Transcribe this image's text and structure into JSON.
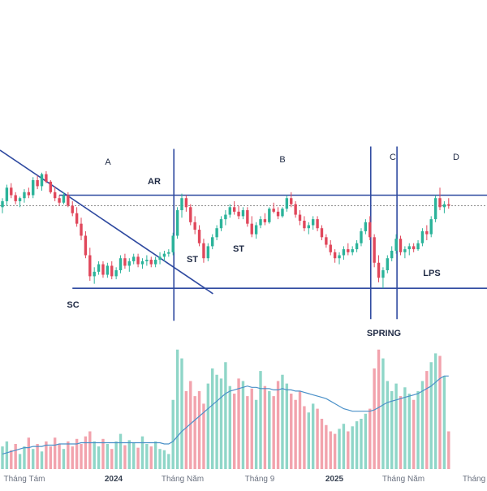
{
  "chart_data": {
    "type": "candlestick",
    "title": "",
    "colors": {
      "up": "#2bb39a",
      "down": "#e0475b",
      "volume_up": "#8fd6c8",
      "volume_down": "#f2a3ad",
      "wyckoff_lines": "#2f4aa0",
      "volume_ma": "#4a90c8",
      "current_price_line": "#8a8a8a"
    },
    "x_axis_labels": [
      "Tháng Tám",
      "2024",
      "Tháng Năm",
      "Tháng 9",
      "2025",
      "Tháng Năm",
      "Tháng"
    ],
    "phases": [
      "A",
      "B",
      "C",
      "D"
    ],
    "events": [
      "SC",
      "AR",
      "ST",
      "ST",
      "SPRING",
      "LPS"
    ],
    "ohlc": [
      [
        262,
        268,
        258,
        266
      ],
      [
        266,
        277,
        263,
        275
      ],
      [
        275,
        278,
        268,
        270
      ],
      [
        270,
        272,
        264,
        266
      ],
      [
        266,
        269,
        262,
        268
      ],
      [
        268,
        274,
        265,
        272
      ],
      [
        272,
        275,
        268,
        270
      ],
      [
        270,
        282,
        268,
        280
      ],
      [
        280,
        283,
        274,
        276
      ],
      [
        276,
        285,
        273,
        284
      ],
      [
        284,
        286,
        278,
        279
      ],
      [
        279,
        280,
        271,
        272
      ],
      [
        272,
        276,
        266,
        268
      ],
      [
        268,
        270,
        263,
        265
      ],
      [
        265,
        272,
        264,
        270
      ],
      [
        270,
        272,
        262,
        263
      ],
      [
        263,
        266,
        256,
        258
      ],
      [
        258,
        262,
        249,
        251
      ],
      [
        251,
        255,
        240,
        243
      ],
      [
        243,
        246,
        228,
        230
      ],
      [
        230,
        235,
        213,
        216
      ],
      [
        216,
        222,
        211,
        219
      ],
      [
        219,
        226,
        217,
        224
      ],
      [
        224,
        226,
        215,
        217
      ],
      [
        217,
        225,
        215,
        223
      ],
      [
        223,
        226,
        214,
        216
      ],
      [
        216,
        222,
        214,
        220
      ],
      [
        220,
        230,
        218,
        228
      ],
      [
        228,
        231,
        221,
        223
      ],
      [
        223,
        228,
        219,
        226
      ],
      [
        226,
        231,
        224,
        229
      ],
      [
        229,
        231,
        222,
        224
      ],
      [
        224,
        228,
        221,
        226
      ],
      [
        226,
        230,
        223,
        227
      ],
      [
        227,
        229,
        222,
        224
      ],
      [
        224,
        229,
        222,
        227
      ],
      [
        227,
        232,
        224,
        229
      ],
      [
        229,
        233,
        226,
        231
      ],
      [
        231,
        234,
        229,
        232
      ],
      [
        232,
        245,
        230,
        243
      ],
      [
        243,
        262,
        241,
        260
      ],
      [
        260,
        271,
        255,
        268
      ],
      [
        268,
        270,
        259,
        262
      ],
      [
        262,
        264,
        250,
        252
      ],
      [
        252,
        256,
        244,
        247
      ],
      [
        247,
        250,
        236,
        238
      ],
      [
        238,
        241,
        225,
        228
      ],
      [
        228,
        238,
        226,
        236
      ],
      [
        236,
        244,
        234,
        242
      ],
      [
        242,
        250,
        240,
        248
      ],
      [
        248,
        256,
        246,
        254
      ],
      [
        254,
        260,
        250,
        257
      ],
      [
        257,
        264,
        255,
        262
      ],
      [
        262,
        266,
        257,
        259
      ],
      [
        259,
        263,
        254,
        256
      ],
      [
        256,
        262,
        254,
        260
      ],
      [
        260,
        262,
        249,
        251
      ],
      [
        251,
        256,
        242,
        244
      ],
      [
        244,
        252,
        241,
        250
      ],
      [
        250,
        256,
        248,
        254
      ],
      [
        254,
        258,
        250,
        252
      ],
      [
        252,
        262,
        251,
        261
      ],
      [
        261,
        265,
        258,
        259
      ],
      [
        259,
        262,
        254,
        256
      ],
      [
        256,
        262,
        255,
        261
      ],
      [
        261,
        270,
        259,
        268
      ],
      [
        268,
        272,
        262,
        264
      ],
      [
        264,
        266,
        255,
        257
      ],
      [
        257,
        260,
        250,
        253
      ],
      [
        253,
        256,
        246,
        248
      ],
      [
        248,
        252,
        244,
        250
      ],
      [
        250,
        256,
        247,
        254
      ],
      [
        254,
        256,
        246,
        248
      ],
      [
        248,
        250,
        240,
        242
      ],
      [
        242,
        244,
        235,
        237
      ],
      [
        237,
        240,
        230,
        232
      ],
      [
        232,
        234,
        225,
        228
      ],
      [
        228,
        232,
        224,
        230
      ],
      [
        230,
        236,
        227,
        234
      ],
      [
        234,
        238,
        230,
        232
      ],
      [
        232,
        236,
        230,
        234
      ],
      [
        234,
        240,
        232,
        238
      ],
      [
        238,
        248,
        236,
        246
      ],
      [
        246,
        254,
        244,
        252
      ],
      [
        252,
        256,
        240,
        242
      ],
      [
        242,
        244,
        222,
        225
      ],
      [
        225,
        230,
        212,
        215
      ],
      [
        215,
        222,
        208,
        220
      ],
      [
        220,
        230,
        218,
        228
      ],
      [
        228,
        236,
        226,
        233
      ],
      [
        233,
        244,
        231,
        241
      ],
      [
        241,
        243,
        230,
        232
      ],
      [
        232,
        236,
        228,
        234
      ],
      [
        234,
        238,
        230,
        236
      ],
      [
        236,
        238,
        232,
        234
      ],
      [
        234,
        240,
        233,
        238
      ],
      [
        238,
        248,
        236,
        246
      ],
      [
        246,
        250,
        240,
        244
      ],
      [
        244,
        256,
        242,
        254
      ],
      [
        254,
        270,
        252,
        268
      ],
      [
        268,
        275,
        260,
        262
      ],
      [
        262,
        266,
        258,
        264
      ],
      [
        264,
        268,
        261,
        263
      ]
    ],
    "volume": [
      0.18,
      0.22,
      0.15,
      0.2,
      0.12,
      0.18,
      0.25,
      0.16,
      0.2,
      0.14,
      0.22,
      0.18,
      0.25,
      0.2,
      0.16,
      0.22,
      0.18,
      0.24,
      0.2,
      0.26,
      0.3,
      0.22,
      0.18,
      0.24,
      0.2,
      0.16,
      0.22,
      0.28,
      0.19,
      0.23,
      0.21,
      0.17,
      0.26,
      0.2,
      0.18,
      0.22,
      0.16,
      0.15,
      0.12,
      0.55,
      0.95,
      0.88,
      0.62,
      0.7,
      0.58,
      0.62,
      0.52,
      0.68,
      0.8,
      0.75,
      0.72,
      0.85,
      0.66,
      0.6,
      0.72,
      0.7,
      0.58,
      0.64,
      0.55,
      0.78,
      0.66,
      0.62,
      0.58,
      0.7,
      0.75,
      0.68,
      0.6,
      0.55,
      0.62,
      0.5,
      0.45,
      0.52,
      0.48,
      0.4,
      0.35,
      0.3,
      0.28,
      0.32,
      0.36,
      0.3,
      0.34,
      0.38,
      0.4,
      0.44,
      0.48,
      0.8,
      0.95,
      0.88,
      0.7,
      0.62,
      0.68,
      0.58,
      0.65,
      0.6,
      0.55,
      0.62,
      0.7,
      0.78,
      0.85,
      0.92,
      0.9,
      0.74,
      0.3
    ],
    "volume_ma": [
      0.12,
      0.13,
      0.14,
      0.15,
      0.16,
      0.17,
      0.17,
      0.18,
      0.18,
      0.18,
      0.19,
      0.19,
      0.19,
      0.2,
      0.2,
      0.2,
      0.2,
      0.2,
      0.21,
      0.21,
      0.21,
      0.21,
      0.21,
      0.21,
      0.21,
      0.21,
      0.21,
      0.21,
      0.21,
      0.21,
      0.21,
      0.21,
      0.21,
      0.21,
      0.21,
      0.21,
      0.21,
      0.2,
      0.2,
      0.22,
      0.26,
      0.3,
      0.33,
      0.36,
      0.39,
      0.42,
      0.45,
      0.48,
      0.51,
      0.54,
      0.57,
      0.6,
      0.62,
      0.63,
      0.64,
      0.65,
      0.66,
      0.65,
      0.65,
      0.64,
      0.64,
      0.64,
      0.63,
      0.63,
      0.64,
      0.63,
      0.63,
      0.62,
      0.62,
      0.61,
      0.6,
      0.59,
      0.58,
      0.57,
      0.56,
      0.54,
      0.52,
      0.5,
      0.48,
      0.47,
      0.46,
      0.46,
      0.46,
      0.46,
      0.46,
      0.47,
      0.49,
      0.51,
      0.53,
      0.54,
      0.55,
      0.56,
      0.57,
      0.58,
      0.59,
      0.6,
      0.62,
      0.64,
      0.66,
      0.69,
      0.72,
      0.74,
      0.74
    ],
    "wyckoff": {
      "resistance": 270,
      "support": 208,
      "current_price": 263,
      "downtrend_start": [
        0,
        300
      ],
      "downtrend_end": [
        37,
        206
      ],
      "resistance_start_index": 13,
      "phase_dividers": [
        39,
        84,
        90
      ]
    }
  }
}
